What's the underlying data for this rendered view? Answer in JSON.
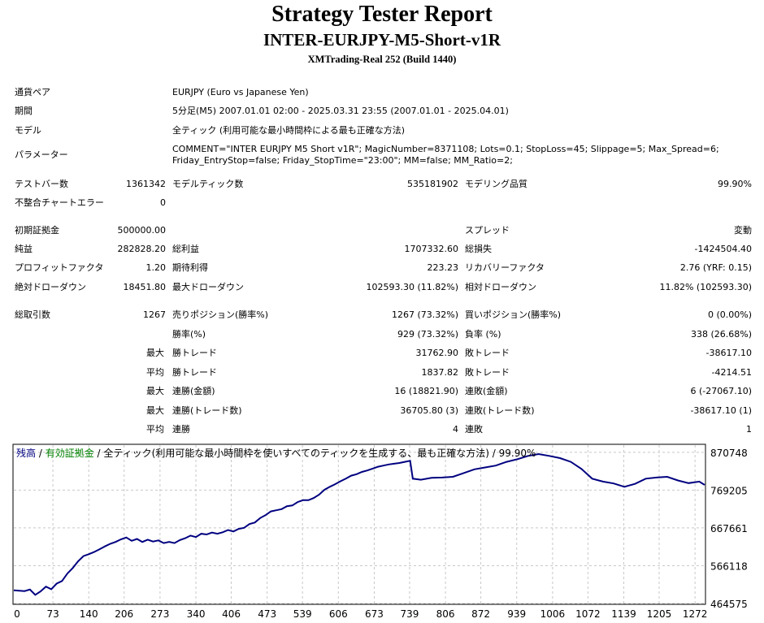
{
  "report": {
    "title": "Strategy Tester Report",
    "subtitle": "INTER-EURJPY-M5-Short-v1R",
    "server": "XMTrading-Real 252 (Build 1440)"
  },
  "info": {
    "pair_label": "通貨ペア",
    "pair_value": "EURJPY (Euro vs Japanese Yen)",
    "period_label": "期間",
    "period_value": "5分足(M5) 2007.01.01 02:00 - 2025.03.31 23:55 (2007.01.01 - 2025.04.01)",
    "model_label": "モデル",
    "model_value": "全ティック (利用可能な最小時間枠による最も正確な方法)",
    "params_label": "パラメーター",
    "params_value": "COMMENT=\"INTER EURJPY M5 Short v1R\"; MagicNumber=8371108; Lots=0.1; StopLoss=45; Slippage=5; Max_Spread=6; Friday_EntryStop=false; Friday_StopTime=\"23:00\"; MM=false; MM_Ratio=2;"
  },
  "stats": {
    "bars_label": "テストバー数",
    "bars_value": "1361342",
    "ticks_label": "モデルティック数",
    "ticks_value": "535181902",
    "quality_label": "モデリング品質",
    "quality_value": "99.90%",
    "mismatch_label": "不整合チャートエラー",
    "mismatch_value": "0",
    "deposit_label": "初期証拠金",
    "deposit_value": "500000.00",
    "spread_label": "スプレッド",
    "spread_value": "変動",
    "net_label": "純益",
    "net_value": "282828.20",
    "gross_profit_label": "総利益",
    "gross_profit_value": "1707332.60",
    "gross_loss_label": "総損失",
    "gross_loss_value": "-1424504.40",
    "pf_label": "プロフィットファクタ",
    "pf_value": "1.20",
    "expected_label": "期待利得",
    "expected_value": "223.23",
    "recovery_label": "リカバリーファクタ",
    "recovery_value": "2.76 (YRF: 0.15)",
    "abs_dd_label": "絶対ドローダウン",
    "abs_dd_value": "18451.80",
    "max_dd_label": "最大ドローダウン",
    "max_dd_value": "102593.30 (11.82%)",
    "rel_dd_label": "相対ドローダウン",
    "rel_dd_value": "11.82% (102593.30)",
    "total_trades_label": "総取引数",
    "total_trades_value": "1267",
    "short_label": "売りポジション(勝率%)",
    "short_value": "1267 (73.32%)",
    "long_label": "買いポジション(勝率%)",
    "long_value": "0 (0.00%)",
    "winrate_label": "勝率(%)",
    "winrate_value": "929 (73.32%)",
    "lossrate_label": "負率 (%)",
    "lossrate_value": "338 (26.68%)",
    "max_label": "最大",
    "avg_label": "平均",
    "win_trade_label": "勝トレード",
    "loss_trade_label": "敗トレード",
    "max_win_value": "31762.90",
    "max_loss_value": "-38617.10",
    "avg_win_value": "1837.82",
    "avg_loss_value": "-4214.51",
    "consec_win_amt_label": "連勝(金額)",
    "consec_win_amt_value": "16 (18821.90)",
    "consec_loss_amt_label": "連敗(金額)",
    "consec_loss_amt_value": "6 (-27067.10)",
    "consec_win_trd_label": "連勝(トレード数)",
    "consec_win_trd_value": "36705.80 (3)",
    "consec_loss_trd_label": "連敗(トレード数)",
    "consec_loss_trd_value": "-38617.10 (1)",
    "avg_win_streak_label": "連勝",
    "avg_win_streak_value": "4",
    "avg_loss_streak_label": "連敗",
    "avg_loss_streak_value": "1"
  },
  "chart_data": {
    "type": "line",
    "legend": {
      "balance": "残高",
      "sep1": " / ",
      "equity": "有効証拠金",
      "sep2": " / ",
      "model": "全ティック(利用可能な最小時間枠を使いすべてのティックを生成する、最も正確な方法) / 99.90%"
    },
    "x_ticks": [
      0,
      73,
      140,
      206,
      273,
      340,
      406,
      473,
      539,
      606,
      673,
      739,
      806,
      872,
      939,
      1006,
      1072,
      1139,
      1205,
      1272
    ],
    "y_ticks": [
      870748,
      769205,
      667661,
      566118,
      464575
    ],
    "xlim": [
      0,
      1290
    ],
    "ylim": [
      464575,
      890000
    ],
    "colors": {
      "balance": "#000080",
      "equity": "#008000",
      "grid": "#c8c8c8"
    },
    "series": [
      {
        "name": "残高",
        "x": [
          0,
          20,
          30,
          40,
          50,
          60,
          70,
          80,
          90,
          100,
          110,
          120,
          130,
          140,
          150,
          160,
          170,
          180,
          190,
          200,
          210,
          220,
          230,
          240,
          250,
          260,
          270,
          280,
          290,
          300,
          310,
          320,
          330,
          340,
          350,
          360,
          370,
          380,
          390,
          400,
          410,
          420,
          430,
          440,
          450,
          460,
          470,
          480,
          490,
          500,
          510,
          520,
          530,
          540,
          550,
          560,
          570,
          580,
          590,
          600,
          610,
          620,
          630,
          640,
          650,
          660,
          670,
          680,
          690,
          700,
          710,
          720,
          730,
          740,
          745,
          760,
          780,
          800,
          820,
          840,
          860,
          880,
          900,
          920,
          940,
          960,
          980,
          1000,
          1020,
          1040,
          1060,
          1080,
          1100,
          1120,
          1140,
          1160,
          1180,
          1200,
          1220,
          1240,
          1260,
          1280,
          1290
        ],
        "y": [
          500000,
          498000,
          502000,
          488000,
          497000,
          510000,
          503000,
          518000,
          525000,
          545000,
          560000,
          578000,
          592000,
          597000,
          603000,
          610000,
          618000,
          625000,
          630000,
          637000,
          642000,
          633000,
          638000,
          630000,
          636000,
          631000,
          634000,
          627000,
          630000,
          627000,
          635000,
          640000,
          647000,
          643000,
          652000,
          650000,
          655000,
          652000,
          656000,
          662000,
          658000,
          665000,
          668000,
          678000,
          682000,
          694000,
          702000,
          712000,
          715000,
          718000,
          726000,
          728000,
          737000,
          742000,
          742000,
          748000,
          757000,
          770000,
          778000,
          785000,
          793000,
          800000,
          808000,
          812000,
          818000,
          822000,
          827000,
          832000,
          835000,
          838000,
          840000,
          842000,
          845000,
          848000,
          800000,
          797000,
          802000,
          803000,
          805000,
          815000,
          825000,
          830000,
          835000,
          845000,
          852000,
          861000,
          866000,
          861000,
          855000,
          845000,
          826000,
          800000,
          792000,
          787000,
          778000,
          786000,
          800000,
          803000,
          805000,
          795000,
          788000,
          792000,
          783000
        ]
      }
    ]
  }
}
